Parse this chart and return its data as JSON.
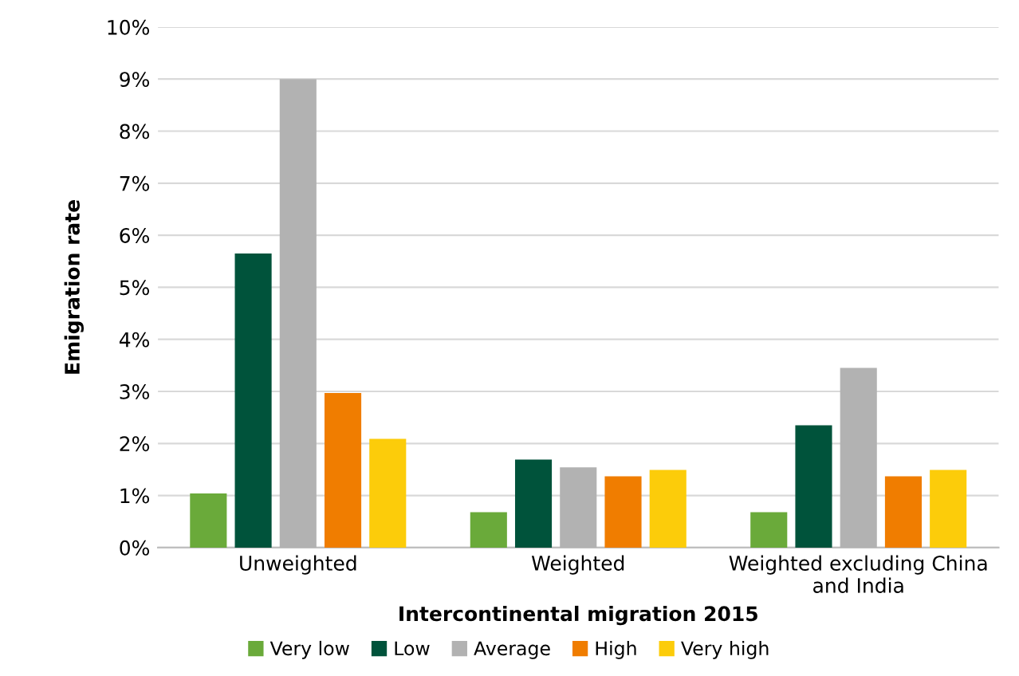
{
  "chart_data": {
    "type": "bar",
    "xlabel": "Intercontinental migration 2015",
    "ylabel": "Emigration rate",
    "categories": [
      "Unweighted",
      "Weighted",
      "Weighted excluding China\nand India"
    ],
    "series": [
      {
        "name": "Very low",
        "color": "#6aaa3a",
        "values": [
          1.04,
          0.68,
          0.68
        ]
      },
      {
        "name": "Low",
        "color": "#00533b",
        "values": [
          5.65,
          1.69,
          2.35
        ]
      },
      {
        "name": "Average",
        "color": "#b2b2b2",
        "values": [
          9.0,
          1.54,
          3.45
        ]
      },
      {
        "name": "High",
        "color": "#f07d00",
        "values": [
          2.97,
          1.37,
          1.37
        ]
      },
      {
        "name": "Very high",
        "color": "#fccc0a",
        "values": [
          2.09,
          1.49,
          1.49
        ]
      }
    ],
    "ylim": [
      0,
      10
    ],
    "yticks": [
      {
        "value": 0,
        "label": "0%"
      },
      {
        "value": 1,
        "label": "1%"
      },
      {
        "value": 2,
        "label": "2%"
      },
      {
        "value": 3,
        "label": "3%"
      },
      {
        "value": 4,
        "label": "4%"
      },
      {
        "value": 5,
        "label": "5%"
      },
      {
        "value": 6,
        "label": "6%"
      },
      {
        "value": 7,
        "label": "7%"
      },
      {
        "value": 8,
        "label": "8%"
      },
      {
        "value": 9,
        "label": "9%"
      },
      {
        "value": 10,
        "label": "10%"
      }
    ],
    "grid": "y",
    "legend": "bottom"
  }
}
